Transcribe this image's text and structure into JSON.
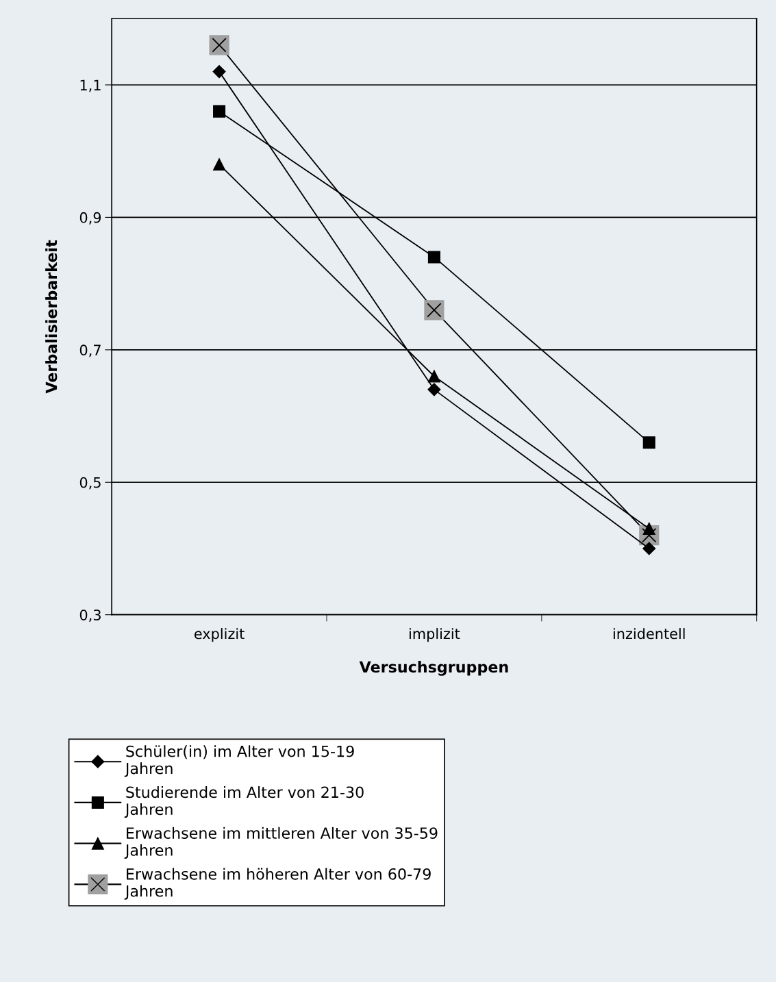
{
  "chart_data": {
    "type": "line",
    "xlabel": "Versuchsgruppen",
    "ylabel": "Verbalisierbarkeit",
    "categories": [
      "explizit",
      "implizit",
      "inzidentell"
    ],
    "series": [
      {
        "name": "Schüler(in) im Alter von 15-19 Jahren",
        "color": "#000000",
        "marker": "diamond",
        "values": [
          1.12,
          0.64,
          0.4
        ]
      },
      {
        "name": "Studierende im Alter von 21-30 Jahren",
        "color": "#000000",
        "marker": "square",
        "values": [
          1.06,
          0.84,
          0.56
        ]
      },
      {
        "name": "Erwachsene im mittleren Alter von 35-59 Jahren",
        "color": "#000000",
        "marker": "triangle",
        "values": [
          0.98,
          0.66,
          0.43
        ]
      },
      {
        "name": "Erwachsene im höheren Alter von 60-79 Jahren",
        "color": "#000000",
        "marker": "cross",
        "values": [
          1.16,
          0.76,
          0.42
        ]
      }
    ],
    "ylim": [
      0.3,
      1.2
    ],
    "yticks": [
      {
        "value": 0.3,
        "label": "0,3"
      },
      {
        "value": 0.5,
        "label": "0,5"
      },
      {
        "value": 0.7,
        "label": "0,7"
      },
      {
        "value": 0.9,
        "label": "0,9"
      },
      {
        "value": 1.1,
        "label": "1,1"
      }
    ],
    "grid": "y",
    "legend": "bottom",
    "line_style": "solid"
  }
}
